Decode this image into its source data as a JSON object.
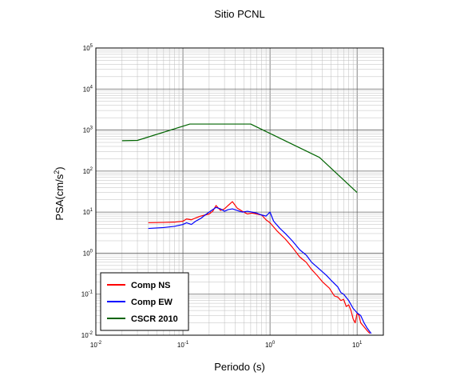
{
  "chart_data": {
    "type": "line",
    "title": "Sitio PCNL",
    "xlabel": "Periodo (s)",
    "ylabel": {
      "base": "PSA(cm/s",
      "sup": "2",
      "close": ")"
    },
    "x_scale": "log",
    "y_scale": "log",
    "xlim": [
      0.01,
      20
    ],
    "ylim": [
      0.01,
      100000
    ],
    "x_ticks": [
      {
        "base": "10",
        "exp": "-2",
        "value": 0.01
      },
      {
        "base": "10",
        "exp": "-1",
        "value": 0.1
      },
      {
        "base": "10",
        "exp": "0",
        "value": 1
      },
      {
        "base": "10",
        "exp": "1",
        "value": 10
      }
    ],
    "y_ticks": [
      {
        "base": "10",
        "exp": "-2",
        "value": 0.01
      },
      {
        "base": "10",
        "exp": "-1",
        "value": 0.1
      },
      {
        "base": "10",
        "exp": "0",
        "value": 1
      },
      {
        "base": "10",
        "exp": "1",
        "value": 10
      },
      {
        "base": "10",
        "exp": "2",
        "value": 100
      },
      {
        "base": "10",
        "exp": "3",
        "value": 1000
      },
      {
        "base": "10",
        "exp": "4",
        "value": 10000
      },
      {
        "base": "10",
        "exp": "5",
        "value": 100000
      }
    ],
    "grid": true,
    "legend_position": "bottom-left",
    "series": [
      {
        "name": "Comp NS",
        "color": "#ff0000",
        "points": [
          [
            0.04,
            5.5
          ],
          [
            0.06,
            5.6
          ],
          [
            0.08,
            5.7
          ],
          [
            0.1,
            6.0
          ],
          [
            0.11,
            6.8
          ],
          [
            0.125,
            6.5
          ],
          [
            0.14,
            7.2
          ],
          [
            0.16,
            8.0
          ],
          [
            0.18,
            8.5
          ],
          [
            0.2,
            9.0
          ],
          [
            0.22,
            10.5
          ],
          [
            0.24,
            14.5
          ],
          [
            0.27,
            11.0
          ],
          [
            0.3,
            12.0
          ],
          [
            0.33,
            14.5
          ],
          [
            0.37,
            18.0
          ],
          [
            0.42,
            12.5
          ],
          [
            0.48,
            10.5
          ],
          [
            0.55,
            9.0
          ],
          [
            0.62,
            9.5
          ],
          [
            0.7,
            9.0
          ],
          [
            0.8,
            8.5
          ],
          [
            0.9,
            6.5
          ],
          [
            1.0,
            5.5
          ],
          [
            1.2,
            3.5
          ],
          [
            1.5,
            2.2
          ],
          [
            1.8,
            1.4
          ],
          [
            2.2,
            0.8
          ],
          [
            2.6,
            0.6
          ],
          [
            3.0,
            0.4
          ],
          [
            3.5,
            0.28
          ],
          [
            4.0,
            0.2
          ],
          [
            4.8,
            0.14
          ],
          [
            5.5,
            0.09
          ],
          [
            6.0,
            0.085
          ],
          [
            6.5,
            0.07
          ],
          [
            7.0,
            0.075
          ],
          [
            7.5,
            0.05
          ],
          [
            8.0,
            0.055
          ],
          [
            8.5,
            0.04
          ],
          [
            9.0,
            0.025
          ],
          [
            9.5,
            0.02
          ],
          [
            10.0,
            0.035
          ],
          [
            10.5,
            0.03
          ],
          [
            11.0,
            0.02
          ],
          [
            12.0,
            0.016
          ],
          [
            13.0,
            0.013
          ],
          [
            14.0,
            0.011
          ]
        ]
      },
      {
        "name": "Comp EW",
        "color": "#0000ff",
        "points": [
          [
            0.04,
            4.0
          ],
          [
            0.06,
            4.2
          ],
          [
            0.08,
            4.5
          ],
          [
            0.1,
            5.0
          ],
          [
            0.11,
            5.5
          ],
          [
            0.125,
            5.0
          ],
          [
            0.14,
            6.0
          ],
          [
            0.16,
            7.0
          ],
          [
            0.18,
            8.5
          ],
          [
            0.2,
            10.0
          ],
          [
            0.22,
            11.5
          ],
          [
            0.24,
            13.0
          ],
          [
            0.27,
            12.0
          ],
          [
            0.3,
            10.5
          ],
          [
            0.33,
            11.5
          ],
          [
            0.37,
            12.0
          ],
          [
            0.42,
            11.0
          ],
          [
            0.48,
            10.0
          ],
          [
            0.55,
            10.5
          ],
          [
            0.62,
            10.0
          ],
          [
            0.7,
            9.5
          ],
          [
            0.8,
            8.5
          ],
          [
            0.9,
            8.0
          ],
          [
            0.95,
            9.0
          ],
          [
            1.0,
            10.0
          ],
          [
            1.1,
            6.0
          ],
          [
            1.3,
            4.0
          ],
          [
            1.5,
            3.0
          ],
          [
            1.8,
            2.0
          ],
          [
            2.2,
            1.2
          ],
          [
            2.6,
            0.9
          ],
          [
            3.0,
            0.6
          ],
          [
            3.5,
            0.45
          ],
          [
            4.0,
            0.35
          ],
          [
            4.5,
            0.28
          ],
          [
            5.0,
            0.22
          ],
          [
            6.0,
            0.15
          ],
          [
            6.5,
            0.11
          ],
          [
            7.0,
            0.1
          ],
          [
            8.0,
            0.07
          ],
          [
            9.0,
            0.045
          ],
          [
            10.0,
            0.035
          ],
          [
            11.0,
            0.03
          ],
          [
            12.0,
            0.02
          ],
          [
            13.0,
            0.015
          ],
          [
            14.5,
            0.011
          ]
        ]
      },
      {
        "name": "CSCR 2010",
        "color": "#006400",
        "points": [
          [
            0.02,
            550
          ],
          [
            0.03,
            560
          ],
          [
            0.12,
            1400
          ],
          [
            0.6,
            1400
          ],
          [
            3.7,
            215
          ],
          [
            10.0,
            30
          ]
        ]
      }
    ]
  }
}
